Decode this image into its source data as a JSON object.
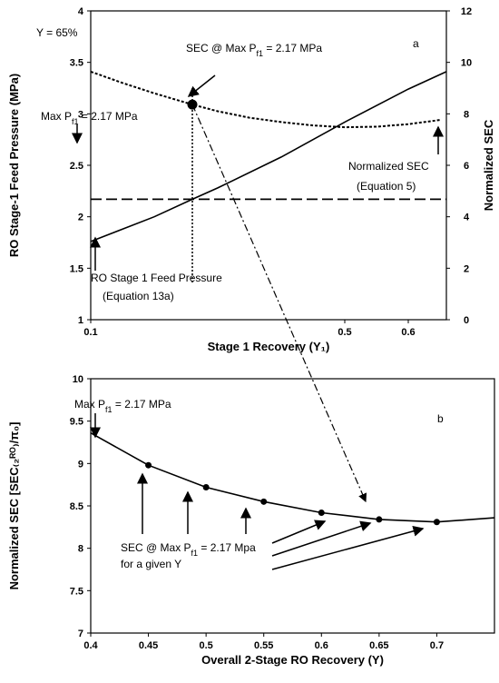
{
  "chart_data": [
    {
      "type": "line",
      "panel_label": "a",
      "x_label": "Stage 1 Recovery (Y₁)",
      "y_label": "RO Stage-1 Feed Pressure (MPa)",
      "y2_label": "Normalized SEC",
      "xlim": [
        0.1,
        0.66
      ],
      "xticks": [
        0.1,
        0.5,
        0.6
      ],
      "ylim": [
        1,
        4
      ],
      "yticks": [
        1,
        1.5,
        2,
        2.5,
        3,
        3.5,
        4
      ],
      "y2lim": [
        0,
        12
      ],
      "y2ticks": [
        0,
        2,
        4,
        6,
        8,
        10,
        12
      ],
      "series": [
        {
          "color": "#000000",
          "style": "solid",
          "x": [
            0.1,
            0.2,
            0.26,
            0.3,
            0.4,
            0.5,
            0.6,
            0.66
          ],
          "values": [
            1.76,
            2.0,
            2.17,
            2.28,
            2.58,
            2.92,
            3.24,
            3.41
          ]
        },
        {
          "color": "#000000",
          "style": "dotted",
          "axis": "y2",
          "x": [
            0.1,
            0.15,
            0.2,
            0.26,
            0.3,
            0.35,
            0.4,
            0.45,
            0.5,
            0.55,
            0.6,
            0.65
          ],
          "values": [
            9.64,
            9.2,
            8.8,
            8.36,
            8.1,
            7.85,
            7.68,
            7.55,
            7.48,
            7.5,
            7.6,
            7.76
          ]
        }
      ],
      "ref_lines": {
        "y": 2.17,
        "x": 0.26
      },
      "highlight": {
        "x": 0.26,
        "y2": 8.36
      },
      "annotations": [
        {
          "text": "Y = 65%"
        },
        {
          "text": "SEC @ Max P",
          "sub": "f1",
          "rest": " = 2.17 MPa"
        },
        {
          "text": "Max P",
          "sub": "f1",
          "rest": " = 2.17 MPa"
        },
        {
          "text": "Normalized SEC"
        },
        {
          "text": "(Equation 5)"
        },
        {
          "text": "RO Stage 1 Feed Pressure"
        },
        {
          "text": "(Equation 13a)"
        }
      ]
    },
    {
      "type": "line",
      "panel_label": "b",
      "x_label": "Overall 2-Stage RO Recovery (Y)",
      "y_label": "Normalized SEC [SEC₍₂ᴿᴼ₎/π₀]",
      "xlim": [
        0.4,
        0.75
      ],
      "xticks": [
        0.4,
        0.45,
        0.5,
        0.55,
        0.6,
        0.65,
        0.7
      ],
      "ylim": [
        7,
        10
      ],
      "yticks": [
        7,
        7.5,
        8,
        8.5,
        9,
        9.5,
        10
      ],
      "series": [
        {
          "color": "#000000",
          "style": "solid",
          "x": [
            0.4,
            0.45,
            0.5,
            0.55,
            0.6,
            0.65,
            0.7,
            0.75
          ],
          "values": [
            9.36,
            8.98,
            8.72,
            8.55,
            8.42,
            8.34,
            8.31,
            8.36
          ]
        },
        {
          "color": "#000000",
          "style": "markers",
          "x": [
            0.45,
            0.5,
            0.55,
            0.6,
            0.65,
            0.7
          ],
          "values": [
            8.98,
            8.72,
            8.55,
            8.42,
            8.34,
            8.31
          ]
        }
      ],
      "annotations": [
        {
          "text": "Max P",
          "sub": "f1",
          "rest": " = 2.17 MPa"
        },
        {
          "text": "SEC @ Max P",
          "sub": "f1",
          "rest": " = 2.17 Mpa"
        },
        {
          "text": "for a given Y"
        }
      ]
    }
  ]
}
